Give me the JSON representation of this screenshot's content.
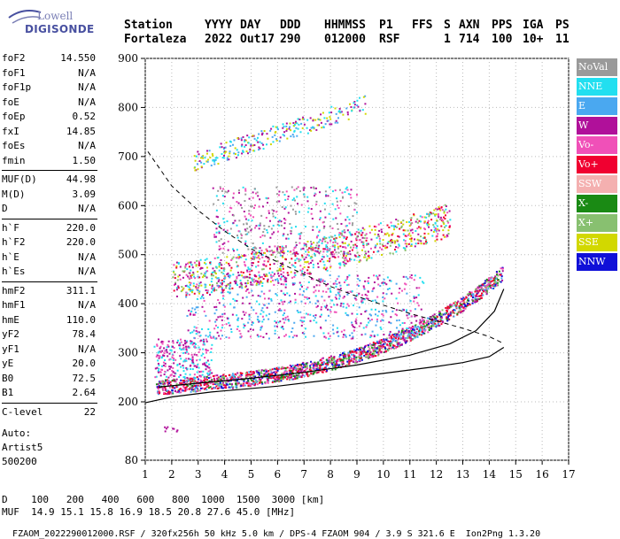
{
  "logo": {
    "line1": "Lowell",
    "line2": "DIGISONDE"
  },
  "header": {
    "labels": [
      "Station",
      "YYYY",
      "DAY",
      "DDD",
      "HHMMSS",
      "P1",
      "FFS",
      "S",
      "AXN",
      "PPS",
      "IGA",
      "PS"
    ],
    "values": [
      "Fortaleza",
      "2022",
      "Out17",
      "290",
      "012000",
      "RSF",
      "",
      "1",
      "714",
      "100",
      "10+",
      "11"
    ]
  },
  "params": [
    {
      "k": "foF2",
      "v": "14.550"
    },
    {
      "k": "foF1",
      "v": "N/A"
    },
    {
      "k": "foF1p",
      "v": "N/A"
    },
    {
      "k": "foE",
      "v": "N/A"
    },
    {
      "k": "foEp",
      "v": "0.52"
    },
    {
      "k": "fxI",
      "v": "14.85"
    },
    {
      "k": "foEs",
      "v": "N/A"
    },
    {
      "k": "fmin",
      "v": "1.50"
    },
    {
      "k": "MUF(D)",
      "v": "44.98"
    },
    {
      "k": "M(D)",
      "v": "3.09"
    },
    {
      "k": "D",
      "v": "N/A"
    },
    {
      "k": "h`F",
      "v": "220.0"
    },
    {
      "k": "h`F2",
      "v": "220.0"
    },
    {
      "k": "h`E",
      "v": "N/A"
    },
    {
      "k": "h`Es",
      "v": "N/A"
    },
    {
      "k": "hmF2",
      "v": "311.1"
    },
    {
      "k": "hmF1",
      "v": "N/A"
    },
    {
      "k": "hmE",
      "v": "110.0"
    },
    {
      "k": "yF2",
      "v": "78.4"
    },
    {
      "k": "yF1",
      "v": "N/A"
    },
    {
      "k": "yE",
      "v": "20.0"
    },
    {
      "k": "B0",
      "v": "72.5"
    },
    {
      "k": "B1",
      "v": "2.64"
    },
    {
      "k": "C-level",
      "v": "22"
    }
  ],
  "auto": {
    "l1": "Auto:",
    "l2": "Artist5",
    "l3": "500200"
  },
  "legend": [
    {
      "label": "NoVal",
      "color": "#9a9a9a"
    },
    {
      "label": "NNE",
      "color": "#22dff0"
    },
    {
      "label": "E",
      "color": "#4aa8f0"
    },
    {
      "label": "W",
      "color": "#b0109a"
    },
    {
      "label": "Vo-",
      "color": "#f050b8"
    },
    {
      "label": "Vo+",
      "color": "#f00030"
    },
    {
      "label": "SSW",
      "color": "#f4b0b0"
    },
    {
      "label": "X-",
      "color": "#1a8a14"
    },
    {
      "label": "X+",
      "color": "#88c070"
    },
    {
      "label": "SSE",
      "color": "#d2d800"
    },
    {
      "label": "NNW",
      "color": "#1010d8"
    }
  ],
  "bottom": {
    "d_label": "D",
    "d_values": [
      "100",
      "200",
      "400",
      "600",
      "800",
      "1000",
      "1500",
      "3000"
    ],
    "d_unit": "[km]",
    "muf_label": "MUF",
    "muf_values": [
      "14.9",
      "15.1",
      "15.8",
      "16.9",
      "18.5",
      "20.8",
      "27.6",
      "45.0"
    ],
    "muf_unit": "[MHz]"
  },
  "footer": {
    "text": "FZAOM_2022290012000.RSF / 320fx256h 50 kHz 5.0 km / DPS-4 FZAOM 904 / 3.9 S 321.6 E",
    "version": "Ion2Png 1.3.20"
  },
  "chart_data": {
    "type": "scatter",
    "xlim": [
      1,
      17
    ],
    "ylim": [
      80,
      900
    ],
    "x_ticks": [
      1,
      2,
      3,
      4,
      5,
      6,
      7,
      8,
      9,
      10,
      11,
      12,
      13,
      14,
      15,
      16,
      17
    ],
    "y_ticks": [
      80,
      200,
      300,
      400,
      500,
      600,
      700,
      800,
      900
    ],
    "grid": true,
    "profile_curve": [
      [
        1.0,
        198
      ],
      [
        2.0,
        210
      ],
      [
        3.5,
        220
      ],
      [
        6.0,
        232
      ],
      [
        8.0,
        245
      ],
      [
        10.0,
        258
      ],
      [
        12.0,
        272
      ],
      [
        13.0,
        280
      ],
      [
        14.0,
        292
      ],
      [
        14.55,
        311
      ]
    ],
    "trace_curve": [
      [
        1.5,
        230
      ],
      [
        3.0,
        238
      ],
      [
        5.0,
        248
      ],
      [
        7.0,
        260
      ],
      [
        9.0,
        275
      ],
      [
        11.0,
        295
      ],
      [
        12.5,
        318
      ],
      [
        13.5,
        345
      ],
      [
        14.2,
        385
      ],
      [
        14.55,
        430
      ]
    ],
    "dashed_curve": [
      [
        1.1,
        710
      ],
      [
        2.0,
        640
      ],
      [
        3.0,
        590
      ],
      [
        4.0,
        548
      ],
      [
        5.0,
        512
      ],
      [
        6.0,
        485
      ],
      [
        7.0,
        460
      ],
      [
        8.0,
        435
      ],
      [
        9.0,
        415
      ],
      [
        10.0,
        397
      ],
      [
        11.0,
        380
      ],
      [
        12.0,
        365
      ],
      [
        13.0,
        350
      ],
      [
        14.0,
        333
      ],
      [
        14.5,
        320
      ]
    ]
  }
}
